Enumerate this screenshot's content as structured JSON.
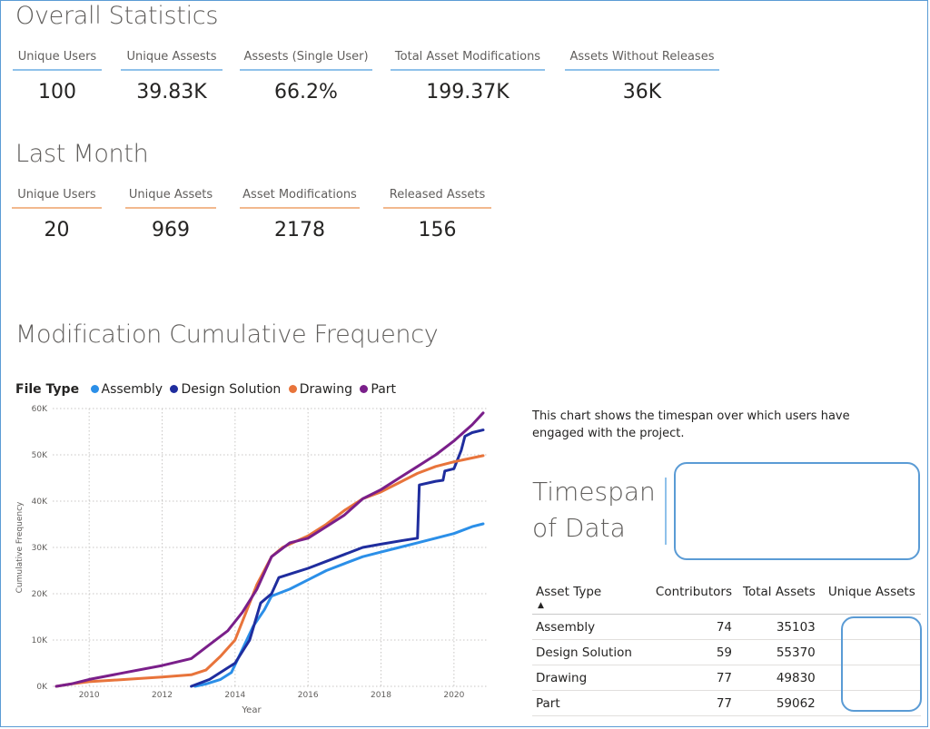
{
  "overall": {
    "title": "Overall Statistics",
    "cards": [
      {
        "label": "Unique Users",
        "value": "100"
      },
      {
        "label": "Unique Assests",
        "value": "39.83K"
      },
      {
        "label": "Assests (Single User)",
        "value": "66.2%"
      },
      {
        "label": "Total Asset Modifications",
        "value": "199.37K"
      },
      {
        "label": "Assets Without Releases",
        "value": "36K"
      }
    ]
  },
  "last_month": {
    "title": "Last Month",
    "cards": [
      {
        "label": "Unique Users",
        "value": "20"
      },
      {
        "label": "Unique Assets",
        "value": "969"
      },
      {
        "label": "Asset Modifications",
        "value": "2178"
      },
      {
        "label": "Released Assets",
        "value": "156"
      }
    ]
  },
  "chart_section": {
    "title": "Modification Cumulative Frequency",
    "legend_title": "File Type"
  },
  "chart_data": {
    "type": "line",
    "xlabel": "Year",
    "ylabel": "Cumulative Frequency",
    "xlim": [
      2009.0,
      2020.9
    ],
    "ylim": [
      0,
      60000
    ],
    "x_ticks": [
      "2010",
      "2012",
      "2014",
      "2016",
      "2018",
      "2020"
    ],
    "y_ticks": [
      "0K",
      "10K",
      "20K",
      "30K",
      "40K",
      "50K",
      "60K"
    ],
    "grid": true,
    "legend_position": "top-left",
    "series": [
      {
        "name": "Assembly",
        "color": "#2b8fe8",
        "points": [
          [
            2012.9,
            0
          ],
          [
            2013.2,
            500
          ],
          [
            2013.6,
            1500
          ],
          [
            2013.9,
            3000
          ],
          [
            2014.2,
            8000
          ],
          [
            2014.5,
            13000
          ],
          [
            2014.8,
            16500
          ],
          [
            2015.0,
            19500
          ],
          [
            2015.5,
            21000
          ],
          [
            2016.0,
            23000
          ],
          [
            2016.5,
            25000
          ],
          [
            2017.0,
            26500
          ],
          [
            2017.5,
            28000
          ],
          [
            2018.0,
            29000
          ],
          [
            2018.5,
            30000
          ],
          [
            2019.0,
            31000
          ],
          [
            2019.5,
            32000
          ],
          [
            2020.0,
            33000
          ],
          [
            2020.5,
            34500
          ],
          [
            2020.8,
            35103
          ]
        ]
      },
      {
        "name": "Design Solution",
        "color": "#1f2d9e",
        "points": [
          [
            2012.8,
            0
          ],
          [
            2013.3,
            1500
          ],
          [
            2013.7,
            3500
          ],
          [
            2014.0,
            5000
          ],
          [
            2014.4,
            10000
          ],
          [
            2014.7,
            18000
          ],
          [
            2015.0,
            20000
          ],
          [
            2015.2,
            23500
          ],
          [
            2015.6,
            24500
          ],
          [
            2016.0,
            25500
          ],
          [
            2016.5,
            27000
          ],
          [
            2017.0,
            28500
          ],
          [
            2017.5,
            30000
          ],
          [
            2018.0,
            30700
          ],
          [
            2018.6,
            31500
          ],
          [
            2019.0,
            32000
          ],
          [
            2019.05,
            43500
          ],
          [
            2019.5,
            44300
          ],
          [
            2019.7,
            44500
          ],
          [
            2019.75,
            46500
          ],
          [
            2020.0,
            47000
          ],
          [
            2020.2,
            51000
          ],
          [
            2020.3,
            54000
          ],
          [
            2020.5,
            54800
          ],
          [
            2020.8,
            55370
          ]
        ]
      },
      {
        "name": "Drawing",
        "color": "#e8743b",
        "points": [
          [
            2009.1,
            0
          ],
          [
            2009.5,
            500
          ],
          [
            2010.0,
            1000
          ],
          [
            2011.0,
            1500
          ],
          [
            2012.0,
            2000
          ],
          [
            2012.8,
            2500
          ],
          [
            2013.2,
            3500
          ],
          [
            2013.6,
            6500
          ],
          [
            2014.0,
            10000
          ],
          [
            2014.3,
            16000
          ],
          [
            2014.6,
            22000
          ],
          [
            2015.0,
            28000
          ],
          [
            2015.3,
            30000
          ],
          [
            2016.0,
            32500
          ],
          [
            2016.5,
            35000
          ],
          [
            2017.0,
            38000
          ],
          [
            2017.5,
            40500
          ],
          [
            2018.0,
            42000
          ],
          [
            2018.5,
            44000
          ],
          [
            2019.0,
            46000
          ],
          [
            2019.5,
            47500
          ],
          [
            2020.0,
            48500
          ],
          [
            2020.8,
            49830
          ]
        ]
      },
      {
        "name": "Part",
        "color": "#7a1f8a",
        "points": [
          [
            2009.1,
            0
          ],
          [
            2009.5,
            500
          ],
          [
            2010.0,
            1500
          ],
          [
            2011.0,
            3000
          ],
          [
            2012.0,
            4500
          ],
          [
            2012.8,
            6000
          ],
          [
            2013.3,
            9000
          ],
          [
            2013.8,
            12000
          ],
          [
            2014.2,
            16000
          ],
          [
            2014.6,
            21000
          ],
          [
            2015.0,
            28000
          ],
          [
            2015.5,
            31000
          ],
          [
            2016.0,
            32000
          ],
          [
            2016.5,
            34500
          ],
          [
            2017.0,
            37000
          ],
          [
            2017.5,
            40500
          ],
          [
            2018.0,
            42500
          ],
          [
            2018.5,
            45000
          ],
          [
            2019.0,
            47500
          ],
          [
            2019.5,
            50000
          ],
          [
            2020.0,
            53000
          ],
          [
            2020.5,
            56500
          ],
          [
            2020.8,
            59062
          ]
        ]
      }
    ]
  },
  "timespan": {
    "description": "This chart shows the timespan over which users have engaged with the project.",
    "title_line1": "Timespan",
    "title_line2": "of Data"
  },
  "asset_table": {
    "columns": [
      "Asset Type",
      "Contributors",
      "Total Assets",
      "Unique Assets"
    ],
    "rows": [
      {
        "type": "Assembly",
        "contributors": "74",
        "total": "35103"
      },
      {
        "type": "Design Solution",
        "contributors": "59",
        "total": "55370"
      },
      {
        "type": "Drawing",
        "contributors": "77",
        "total": "49830"
      },
      {
        "type": "Part",
        "contributors": "77",
        "total": "59062"
      }
    ]
  }
}
